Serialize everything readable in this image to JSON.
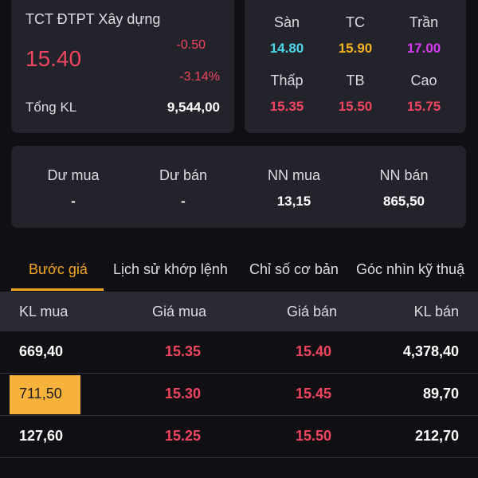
{
  "stock": {
    "name": "TCT ĐTPT Xây dựng",
    "price": "15.40",
    "change": "-0.50",
    "change_pct": "-3.14%",
    "volume_label": "Tổng KL",
    "volume_value": "9,544,00"
  },
  "prices": {
    "floor": {
      "label": "Sàn",
      "value": "14.80",
      "color": "#4fd6e8"
    },
    "ref": {
      "label": "TC",
      "value": "15.90",
      "color": "#f5b323"
    },
    "ceiling": {
      "label": "Trần",
      "value": "17.00",
      "color": "#d63cf0"
    },
    "low": {
      "label": "Thấp",
      "value": "15.35",
      "color": "#f0455f"
    },
    "avg": {
      "label": "TB",
      "value": "15.50",
      "color": "#f0455f"
    },
    "high": {
      "label": "Cao",
      "value": "15.75",
      "color": "#f0455f"
    }
  },
  "foreign": {
    "bid_rest": {
      "label": "Dư mua",
      "value": "-"
    },
    "ask_rest": {
      "label": "Dư bán",
      "value": "-"
    },
    "nn_buy": {
      "label": "NN mua",
      "value": "13,15"
    },
    "nn_sell": {
      "label": "NN bán",
      "value": "865,50"
    }
  },
  "tabs": [
    {
      "label": "Bước giá",
      "active": true
    },
    {
      "label": "Lịch sử khớp lệnh",
      "active": false
    },
    {
      "label": "Chỉ số cơ bản",
      "active": false
    },
    {
      "label": "Góc nhìn kỹ thuậ",
      "active": false
    }
  ],
  "table": {
    "headers": [
      "KL mua",
      "Giá mua",
      "Giá bán",
      "KL bán"
    ],
    "rows": [
      {
        "bid_vol": "669,40",
        "bid_price": "15.35",
        "ask_price": "15.40",
        "ask_vol": "4,378,40"
      },
      {
        "bid_vol": "711,50",
        "bid_price": "15.30",
        "ask_price": "15.45",
        "ask_vol": "89,70"
      },
      {
        "bid_vol": "127,60",
        "bid_price": "15.25",
        "ask_price": "15.50",
        "ask_vol": "212,70"
      }
    ]
  },
  "colors": {
    "up": "#f0455f",
    "accent": "#f5a623",
    "highlight": "#f7b23b"
  }
}
